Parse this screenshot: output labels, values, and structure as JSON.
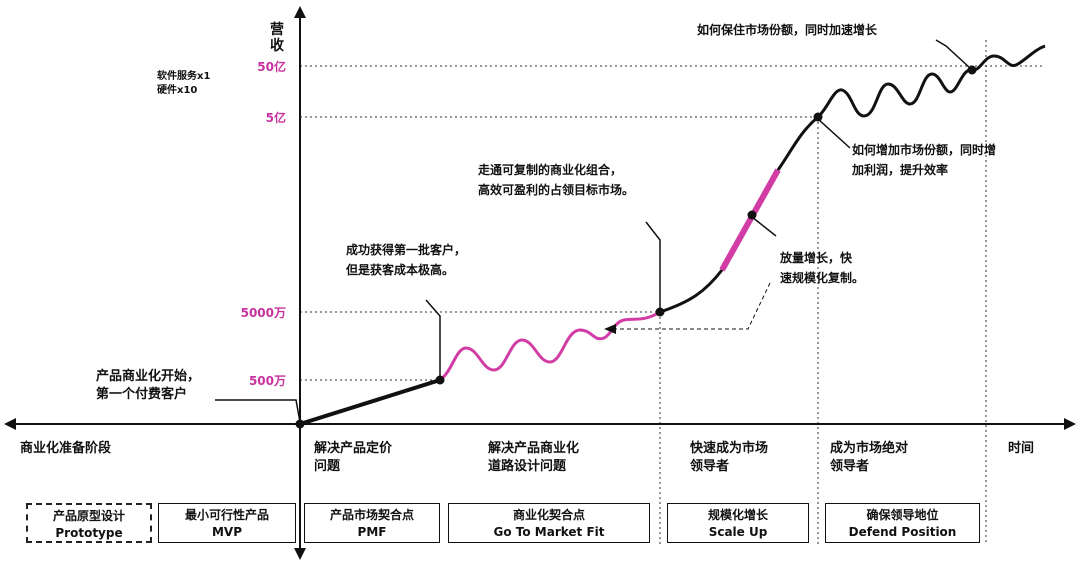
{
  "y_axis_label": "营收",
  "x_axis_label": "时间",
  "y_ticks": [
    "50亿",
    "5亿",
    "5000万",
    "500万"
  ],
  "side_note": [
    "软件服务x1",
    "硬件x10"
  ],
  "annotations": {
    "start": [
      "产品商业化开始，",
      "第一个付费客户"
    ],
    "first_customers": [
      "成功获得第一批客户，",
      "但是获客成本极高。"
    ],
    "replicable": [
      "走通可复制的商业化组合，",
      "高效可盈利的占领目标市场。"
    ],
    "scale": [
      "放量增长，快",
      "速规模化复制。"
    ],
    "increase_share": [
      "如何增加市场份额，同时增",
      "加利润，提升效率"
    ],
    "keep_share": "如何保住市场份额，同时加速增长"
  },
  "stages": [
    {
      "label": [
        "商业化准备阶段"
      ]
    },
    {
      "label": [
        "解决产品定价",
        "问题"
      ]
    },
    {
      "label": [
        "解决产品商业化",
        "道路设计问题"
      ]
    },
    {
      "label": [
        "快速成为市场",
        "领导者"
      ]
    },
    {
      "label": [
        "成为市场绝对",
        "领导者"
      ]
    }
  ],
  "milestones": [
    {
      "cn": "产品原型设计",
      "en": "Prototype"
    },
    {
      "cn": "最小可行性产品",
      "en": "MVP"
    },
    {
      "cn": "产品市场契合点",
      "en": "PMF"
    },
    {
      "cn": "商业化契合点",
      "en": "Go To Market Fit"
    },
    {
      "cn": "规模化增长",
      "en": "Scale Up"
    },
    {
      "cn": "确保领导地位",
      "en": "Defend Position"
    }
  ],
  "colors": {
    "accent": "#d13ca5",
    "ink": "#111111"
  }
}
